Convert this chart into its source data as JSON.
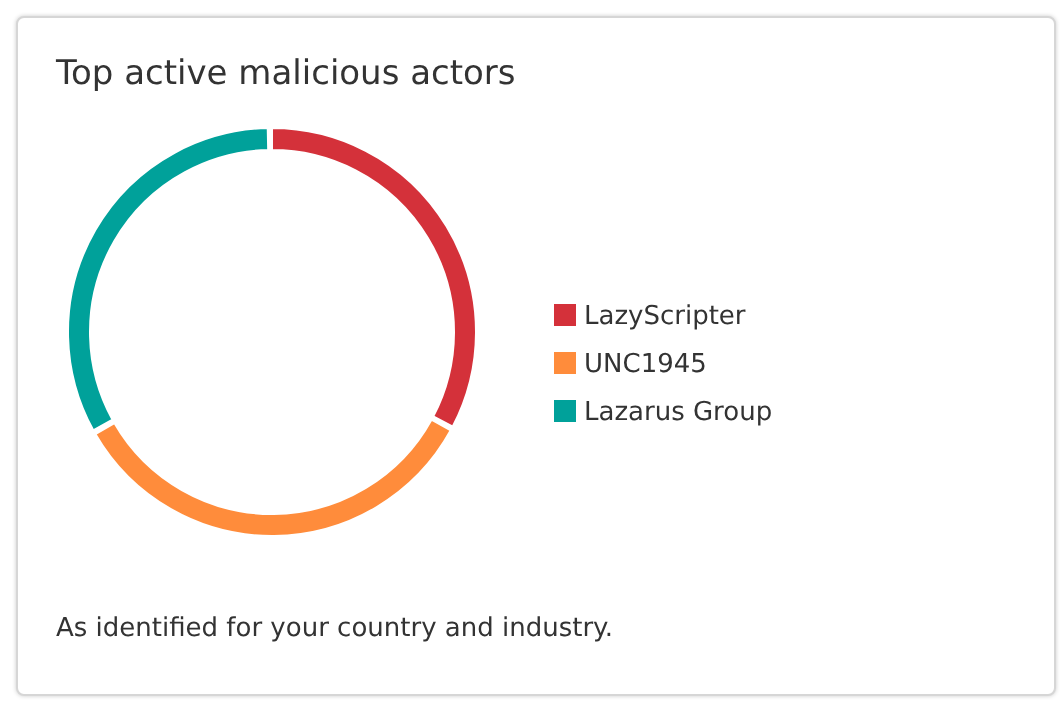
{
  "chart_data": {
    "type": "donut",
    "title": "Top active malicious actors",
    "categories": [
      "LazyScripter",
      "UNC1945",
      "Lazarus Group"
    ],
    "values": [
      33,
      34,
      33
    ],
    "colors": [
      "#d4313a",
      "#ff8c3b",
      "#00a19a"
    ],
    "legend": "right",
    "annotations": [
      "As identified for your country and industry."
    ]
  }
}
